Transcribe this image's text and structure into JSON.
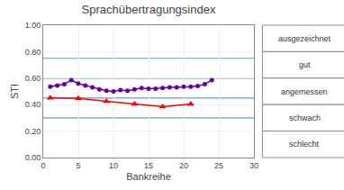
{
  "chart_data": {
    "type": "line",
    "title": "Sprachübertragungsindex",
    "x_label": "Bankreihe",
    "y_label": "STI",
    "xlim": [
      0,
      30
    ],
    "ylim": [
      0.0,
      1.0
    ],
    "xticks": [
      0,
      5,
      10,
      15,
      20,
      25,
      30
    ],
    "yticks": [
      {
        "value": 0.0,
        "label": "0.00"
      },
      {
        "value": 0.2,
        "label": "0.20"
      },
      {
        "value": 0.4,
        "label": "0.40"
      },
      {
        "value": 0.6,
        "label": "0.60"
      },
      {
        "value": 0.8,
        "label": "0.80"
      },
      {
        "value": 1.0,
        "label": "1.00"
      }
    ],
    "grid": true,
    "hlines": {
      "values": [
        0.75,
        0.6,
        0.45,
        0.3
      ],
      "color": "#6699cc"
    },
    "series": [
      {
        "color": "#6600aa",
        "marker": "circle",
        "line_style": "solid",
        "x": [
          1,
          2,
          3,
          4,
          5,
          6,
          7,
          8,
          9,
          10,
          11,
          12,
          13,
          14,
          15,
          16,
          17,
          18,
          19,
          20,
          21,
          22,
          23,
          24
        ],
        "values": [
          0.535,
          0.545,
          0.555,
          0.585,
          0.56,
          0.545,
          0.53,
          0.515,
          0.505,
          0.5,
          0.51,
          0.505,
          0.515,
          0.525,
          0.52,
          0.52,
          0.525,
          0.53,
          0.53,
          0.535,
          0.535,
          0.54,
          0.555,
          0.585
        ]
      },
      {
        "color": "#ff0000",
        "marker": "triangle-up",
        "line_style": "solid",
        "x": [
          1,
          5,
          9,
          13,
          17,
          21
        ],
        "values": [
          0.45,
          0.448,
          0.425,
          0.405,
          0.385,
          0.405
        ]
      }
    ],
    "annotations": [
      "ausgezeichnet",
      "gut",
      "angemessen",
      "schwach",
      "schlecht"
    ]
  }
}
